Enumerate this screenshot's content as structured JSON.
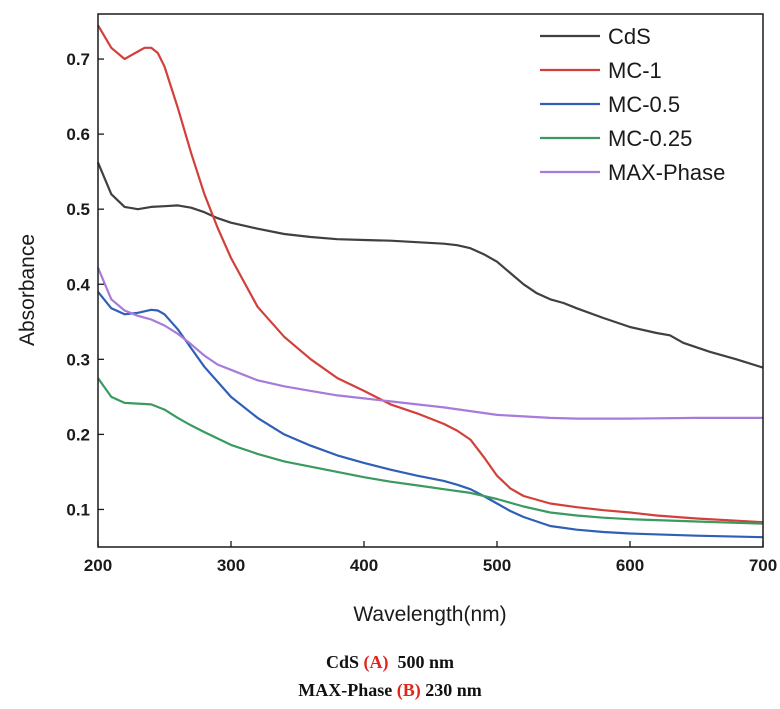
{
  "chart_data": {
    "type": "line",
    "xlabel": "Wavelength(nm)",
    "ylabel": "Absorbance",
    "xlim": [
      200,
      700
    ],
    "ylim": [
      0.05,
      0.76
    ],
    "xticks": [
      200,
      300,
      400,
      500,
      600,
      700
    ],
    "yticks": [
      0.1,
      0.2,
      0.3,
      0.4,
      0.5,
      0.6,
      0.7
    ],
    "grid": false,
    "legend_position": "top-right",
    "series": [
      {
        "name": "CdS",
        "color": "#404040",
        "x": [
          200,
          210,
          220,
          230,
          240,
          250,
          260,
          270,
          280,
          290,
          300,
          320,
          340,
          360,
          380,
          400,
          420,
          440,
          460,
          470,
          480,
          490,
          500,
          510,
          520,
          530,
          540,
          550,
          560,
          580,
          600,
          620,
          630,
          640,
          660,
          680,
          700
        ],
        "y": [
          0.562,
          0.52,
          0.503,
          0.5,
          0.503,
          0.504,
          0.505,
          0.502,
          0.496,
          0.488,
          0.482,
          0.474,
          0.467,
          0.463,
          0.46,
          0.459,
          0.458,
          0.456,
          0.454,
          0.452,
          0.448,
          0.44,
          0.43,
          0.415,
          0.4,
          0.388,
          0.38,
          0.375,
          0.368,
          0.355,
          0.343,
          0.335,
          0.332,
          0.322,
          0.31,
          0.3,
          0.289
        ]
      },
      {
        "name": "MC-1",
        "color": "#d33f3a",
        "x": [
          200,
          210,
          220,
          230,
          235,
          240,
          245,
          250,
          260,
          270,
          280,
          290,
          300,
          320,
          340,
          360,
          380,
          400,
          420,
          440,
          460,
          470,
          480,
          490,
          500,
          510,
          520,
          540,
          560,
          580,
          600,
          620,
          650,
          680,
          700
        ],
        "y": [
          0.745,
          0.715,
          0.7,
          0.71,
          0.715,
          0.715,
          0.708,
          0.69,
          0.635,
          0.575,
          0.52,
          0.475,
          0.435,
          0.37,
          0.33,
          0.3,
          0.275,
          0.258,
          0.24,
          0.228,
          0.214,
          0.205,
          0.193,
          0.17,
          0.145,
          0.128,
          0.118,
          0.108,
          0.103,
          0.099,
          0.096,
          0.092,
          0.088,
          0.085,
          0.083
        ]
      },
      {
        "name": "MC-0.5",
        "color": "#2f5fb7",
        "x": [
          200,
          210,
          220,
          230,
          240,
          245,
          250,
          260,
          270,
          280,
          300,
          320,
          340,
          360,
          380,
          400,
          420,
          440,
          460,
          470,
          480,
          490,
          500,
          510,
          520,
          540,
          560,
          580,
          600,
          650,
          700
        ],
        "y": [
          0.39,
          0.368,
          0.36,
          0.362,
          0.366,
          0.365,
          0.36,
          0.34,
          0.315,
          0.29,
          0.25,
          0.222,
          0.2,
          0.185,
          0.172,
          0.162,
          0.153,
          0.145,
          0.138,
          0.133,
          0.127,
          0.118,
          0.108,
          0.098,
          0.09,
          0.078,
          0.073,
          0.07,
          0.068,
          0.065,
          0.063
        ]
      },
      {
        "name": "MC-0.25",
        "color": "#3a9a60",
        "x": [
          200,
          210,
          220,
          230,
          240,
          250,
          260,
          270,
          280,
          300,
          320,
          340,
          360,
          380,
          400,
          420,
          440,
          460,
          480,
          500,
          520,
          540,
          560,
          580,
          600,
          650,
          700
        ],
        "y": [
          0.275,
          0.25,
          0.242,
          0.241,
          0.24,
          0.233,
          0.222,
          0.212,
          0.203,
          0.186,
          0.174,
          0.164,
          0.157,
          0.15,
          0.143,
          0.137,
          0.132,
          0.127,
          0.122,
          0.114,
          0.104,
          0.096,
          0.092,
          0.089,
          0.087,
          0.084,
          0.081
        ]
      },
      {
        "name": "MAX-Phase",
        "color": "#a77bd9",
        "x": [
          200,
          210,
          220,
          230,
          240,
          250,
          260,
          270,
          280,
          290,
          300,
          320,
          340,
          360,
          380,
          400,
          420,
          440,
          460,
          480,
          500,
          520,
          540,
          560,
          600,
          650,
          700
        ],
        "y": [
          0.422,
          0.38,
          0.365,
          0.358,
          0.353,
          0.345,
          0.334,
          0.32,
          0.305,
          0.293,
          0.286,
          0.272,
          0.264,
          0.258,
          0.252,
          0.248,
          0.244,
          0.24,
          0.236,
          0.231,
          0.226,
          0.224,
          0.222,
          0.221,
          0.221,
          0.222,
          0.222
        ]
      }
    ]
  },
  "caption": {
    "line1": {
      "before": "CdS ",
      "marker": "(A)",
      "after": "  500 nm"
    },
    "line2": {
      "before": "MAX-Phase ",
      "marker": "(B)",
      "after": " 230 nm"
    }
  }
}
